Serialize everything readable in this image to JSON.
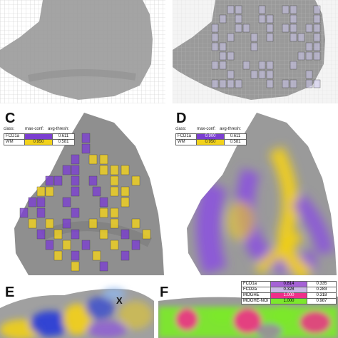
{
  "panels": {
    "c": {
      "letter": "C",
      "legend": {
        "headers": {
          "class": "class:",
          "max_conf": "max-conf:",
          "avg_thresh": "avg-thresh:"
        },
        "rows": [
          {
            "class": "FCD1a",
            "max_conf": "",
            "avg_thresh": "0.611",
            "color": "#7b3fd0"
          },
          {
            "class": "WM",
            "max_conf": "0.950",
            "avg_thresh": "0.581",
            "color": "#f2d21b"
          }
        ]
      }
    },
    "d": {
      "letter": "D",
      "legend": {
        "headers": {
          "class": "class:",
          "max_conf": "max-conf:",
          "avg_thresh": "avg-thresh:"
        },
        "rows": [
          {
            "class": "FCD1a",
            "max_conf": "0.900",
            "avg_thresh": "0.611",
            "color": "#7b3fd0"
          },
          {
            "class": "WM",
            "max_conf": "0.950",
            "avg_thresh": "0.581",
            "color": "#f2d21b"
          }
        ]
      }
    },
    "e": {
      "letter": "E",
      "marker": "X"
    },
    "f": {
      "letter": "F",
      "legend": {
        "rows": [
          {
            "class": "FCD1a",
            "max_conf": "0.814",
            "avg_thresh": "0.335",
            "color": "#a561d6"
          },
          {
            "class": "FCD2a",
            "max_conf": "0.328",
            "avg_thresh": "0.283",
            "color": "#c9b8e6"
          },
          {
            "class": "MOGHE",
            "max_conf": "1.000",
            "avg_thresh": "0.318",
            "color": "#ef2f8a"
          },
          {
            "class": "MOGHE-NOi",
            "max_conf": "1.000",
            "avg_thresh": "0.987",
            "color": "#7ce82c"
          }
        ]
      }
    }
  },
  "colors": {
    "tissue": "#9a9a9a",
    "tissue_dark": "#7d7d7d",
    "purple": "#7b3fd0",
    "yellow": "#f2d21b",
    "magenta": "#ef2f8a",
    "green": "#7ce82c",
    "blue": "#2b3fd6",
    "grid_line": "#c8c8c8"
  }
}
